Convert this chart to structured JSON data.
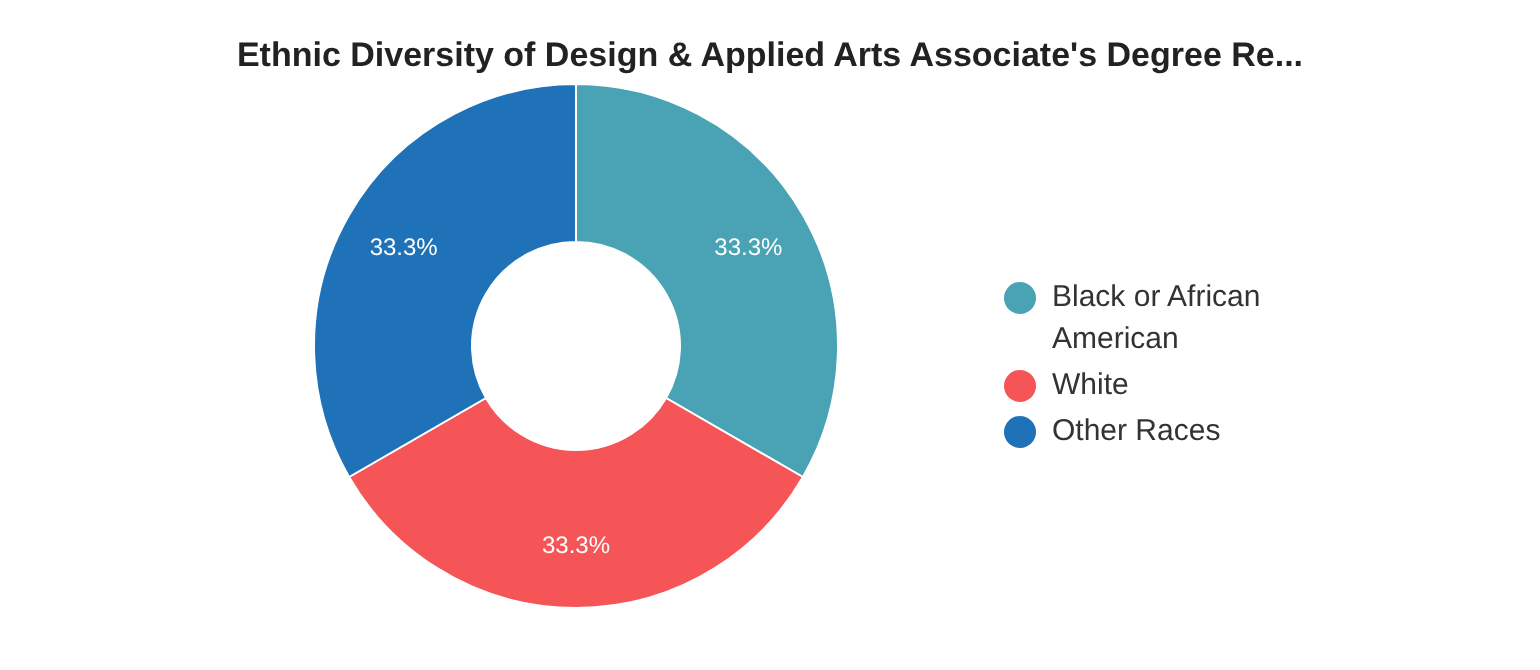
{
  "chart_data": {
    "type": "donut",
    "title": "Ethnic Diversity of Design & Applied Arts Associate's Degree Re...",
    "categories": [
      "Black or African American",
      "White",
      "Other Races"
    ],
    "values": [
      33.3,
      33.3,
      33.3
    ],
    "value_labels": [
      "33.3%",
      "33.3%",
      "33.3%"
    ],
    "colors": [
      "#4aa3b5",
      "#f55556",
      "#1f72b8"
    ],
    "legend": "right"
  }
}
